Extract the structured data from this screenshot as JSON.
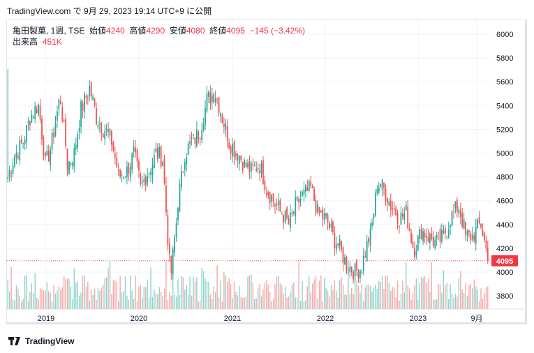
{
  "header": {
    "published": "TradingView.com で 9月 29, 2023 19:14 UTC+9 に公開"
  },
  "legend": {
    "symbol": "亀田製菓, 1週, TSE",
    "open_label": "始値",
    "open": "4240",
    "high_label": "高値",
    "high": "4290",
    "low_label": "安値",
    "low": "4080",
    "close_label": "終値",
    "close": "4095",
    "change": "−145 (−3.42%)",
    "volume_label": "出来高",
    "volume": "451K"
  },
  "footer": {
    "brand": "TradingView"
  },
  "colors": {
    "up": "#26a69a",
    "down": "#ef5350",
    "up_vol": "#8ed4cc",
    "down_vol": "#f7a9a7"
  },
  "chart_data": {
    "type": "candlestick",
    "interval": "1週",
    "price_axis": {
      "ticks": [
        "6000",
        "5800",
        "5600",
        "5400",
        "5200",
        "5000",
        "4800",
        "4600",
        "4400",
        "4200",
        "4000",
        "3800"
      ],
      "range": [
        3700,
        6150
      ]
    },
    "time_axis": {
      "ticks": [
        "2019",
        "2020",
        "2021",
        "2022",
        "2023",
        "9月"
      ]
    },
    "last_price": "4095",
    "monthly_close_approx": [
      4800,
      5000,
      5100,
      5300,
      5400,
      4900,
      5100,
      5450,
      4900,
      5000,
      5400,
      5550,
      5300,
      5200,
      5100,
      4800,
      4850,
      5000,
      4700,
      4850,
      5000,
      4950,
      4000,
      4600,
      5000,
      5100,
      5200,
      5450,
      5500,
      5300,
      5100,
      5000,
      4900,
      4850,
      4900,
      4700,
      4600,
      4500,
      4400,
      4550,
      4650,
      4700,
      4500,
      4450,
      4300,
      4200,
      4050,
      4000,
      4050,
      4300,
      4750,
      4700,
      4550,
      4450,
      4500,
      4200,
      4350,
      4300,
      4250,
      4300,
      4450,
      4550,
      4300,
      4300,
      4400,
      4095
    ]
  }
}
